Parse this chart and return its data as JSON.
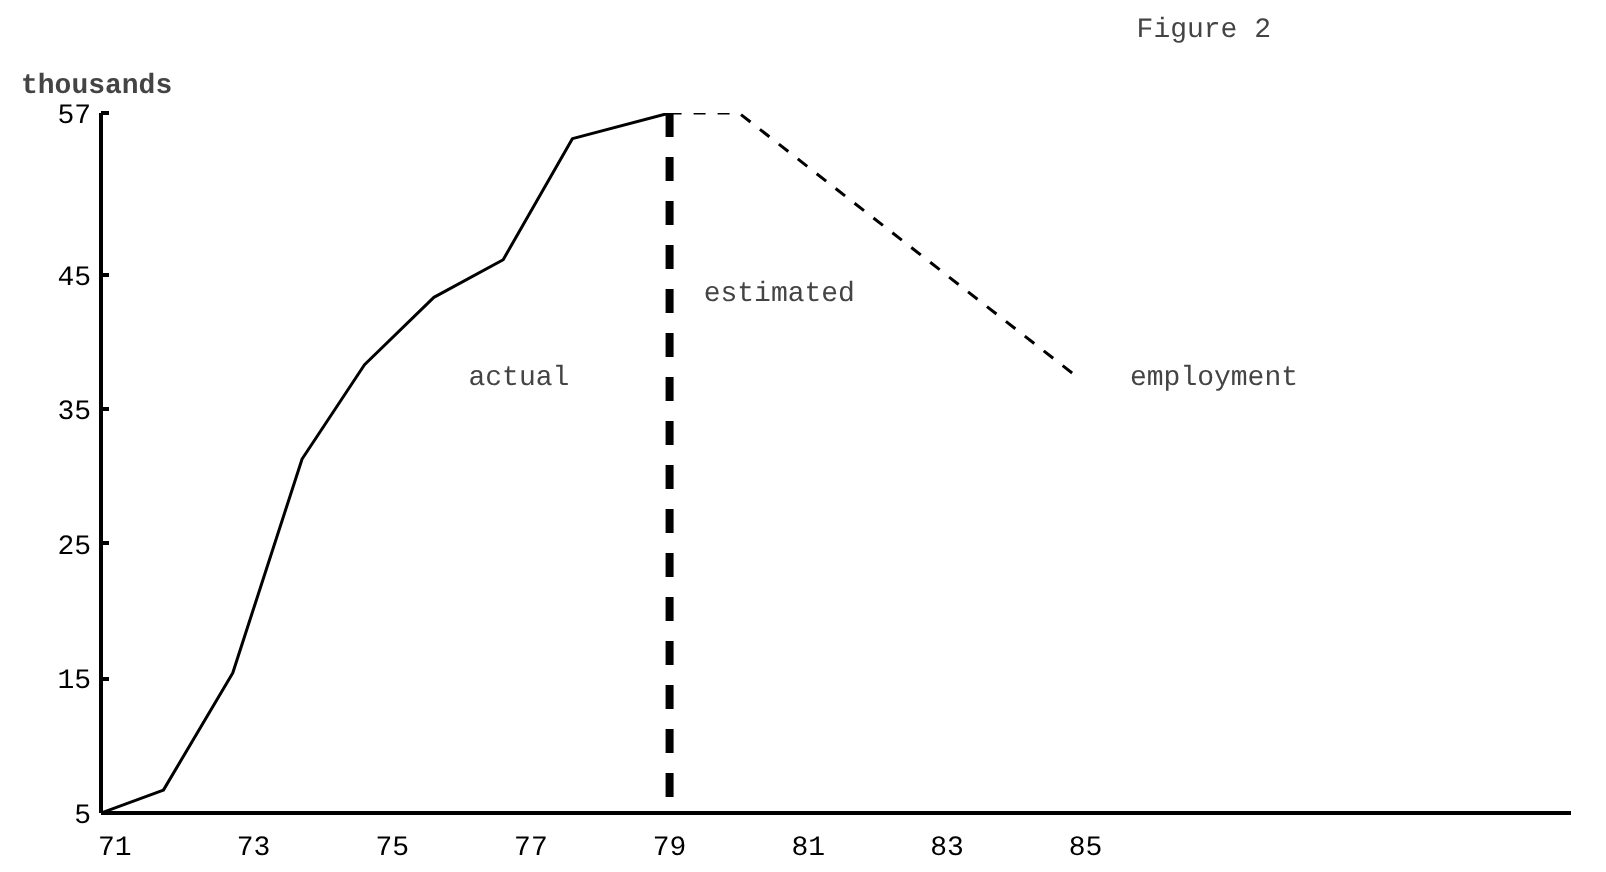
{
  "chart_data": {
    "type": "line",
    "title": "Figure 2",
    "ylabel": "thousands",
    "xlim": [
      70.8,
      92
    ],
    "ylim": [
      5,
      57
    ],
    "xticks": [
      71,
      73,
      75,
      77,
      79,
      81,
      83,
      85
    ],
    "yticks": [
      5,
      15,
      25,
      35,
      45,
      57
    ],
    "grid": false,
    "series": [
      {
        "color": "#000000",
        "line_style": "solid",
        "x": [
          70.8,
          71.7,
          72.7,
          73.7,
          74.6,
          75.6,
          76.6,
          77.6,
          79
        ],
        "values": [
          5,
          6.7,
          15.4,
          31.3,
          38.3,
          43.3,
          46.1,
          55.1,
          57
        ]
      },
      {
        "color": "#000000",
        "line_style": "dashed",
        "x": [
          79,
          80,
          84.9
        ],
        "values": [
          57,
          57,
          37.3
        ]
      }
    ],
    "ref_lines": [
      {
        "axis": "x",
        "value": 79,
        "color": "#000000",
        "line_style": "dashed"
      }
    ],
    "annotations": [
      "actual",
      "estimated",
      "employment"
    ]
  }
}
